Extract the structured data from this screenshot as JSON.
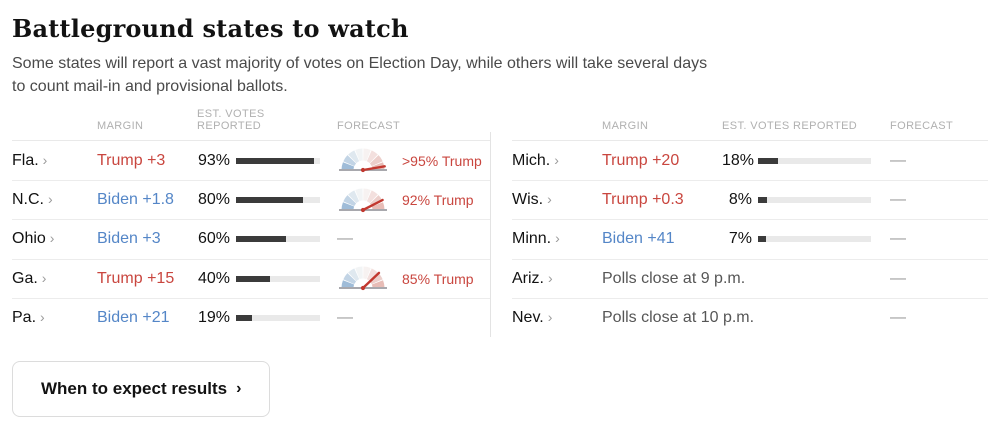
{
  "page": {
    "title": "Battleground states to watch",
    "subtitle": "Some states will report a vast majority of votes on Election Day, while others will take several days to count mail-in and provisional ballots.",
    "dash": "—",
    "state_chevron": "›"
  },
  "column_headers": {
    "margin": "MARGIN",
    "est_votes": "EST. VOTES REPORTED",
    "forecast": "FORECAST"
  },
  "colors": {
    "trump_red": "#c9463f",
    "biden_blue": "#5486c7",
    "bar_fill": "#3b3b3b",
    "bar_bg": "#e9e9e9",
    "needle_red": "#c2382f",
    "gauge_base_gray": "#a8a8ad",
    "gauge_segments": [
      "#9fbcd8",
      "#c2d4e5",
      "#dfe8ef",
      "#f2f4f5",
      "#f7f2f1",
      "#f3e0de",
      "#eccfcb",
      "#e7bcb6"
    ]
  },
  "tables": [
    {
      "side": "left",
      "rows": [
        {
          "state": "Fla.",
          "margin": "Trump +3",
          "margin_party": "trump",
          "votes_label": "93%",
          "votes_pct": 93,
          "forecast": {
            "label": ">95% Trump",
            "trump_chance": 98
          }
        },
        {
          "state": "N.C.",
          "margin": "Biden +1.8",
          "margin_party": "biden",
          "votes_label": "80%",
          "votes_pct": 80,
          "forecast": {
            "label": "92% Trump",
            "trump_chance": 92
          }
        },
        {
          "state": "Ohio",
          "margin": "Biden +3",
          "margin_party": "biden",
          "votes_label": "60%",
          "votes_pct": 60,
          "forecast": null
        },
        {
          "state": "Ga.",
          "margin": "Trump +15",
          "margin_party": "trump",
          "votes_label": "40%",
          "votes_pct": 40,
          "forecast": {
            "label": "85% Trump",
            "trump_chance": 85
          }
        },
        {
          "state": "Pa.",
          "margin": "Biden +21",
          "margin_party": "biden",
          "votes_label": "19%",
          "votes_pct": 19,
          "forecast": null
        }
      ]
    },
    {
      "side": "right",
      "rows": [
        {
          "state": "Mich.",
          "margin": "Trump +20",
          "margin_party": "trump",
          "votes_label": "18%",
          "votes_pct": 18,
          "forecast": null
        },
        {
          "state": "Wis.",
          "margin": "Trump +0.3",
          "margin_party": "trump",
          "votes_label": "8%",
          "votes_pct": 8,
          "forecast": null
        },
        {
          "state": "Minn.",
          "margin": "Biden +41",
          "margin_party": "biden",
          "votes_label": "7%",
          "votes_pct": 7,
          "forecast": null
        },
        {
          "state": "Ariz.",
          "note": "Polls close at 9 p.m.",
          "forecast": null
        },
        {
          "state": "Nev.",
          "note": "Polls close at 10 p.m.",
          "forecast": null
        }
      ]
    }
  ],
  "footer": {
    "button_label": "When to expect results",
    "button_chevron": "›"
  }
}
